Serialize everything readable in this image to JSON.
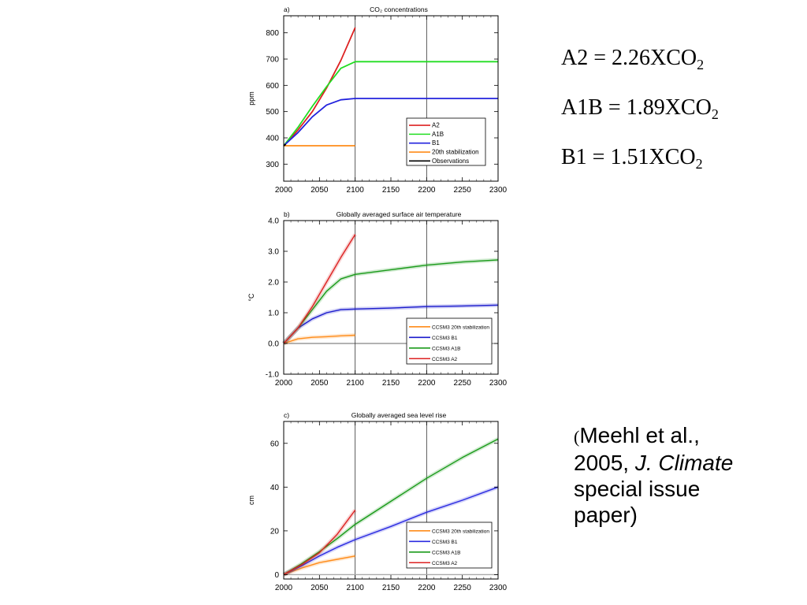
{
  "equations": [
    {
      "label": "A2 = 2.26XCO",
      "sub": "2"
    },
    {
      "label": "A1B = 1.89XCO",
      "sub": "2"
    },
    {
      "label": "B1 = 1.51XCO",
      "sub": "2"
    }
  ],
  "citation": {
    "open_paren": "(",
    "line1": "Meehl et al.,",
    "line2_prefix": "2005, ",
    "journal": "J. Climate",
    "line3": "special issue",
    "line4": "paper)"
  },
  "chart_data": [
    {
      "type": "line",
      "panel_label": "a)",
      "title": "CO₂ concentrations",
      "xlabel": "",
      "ylabel": "ppm",
      "xlim": [
        2000,
        2300
      ],
      "ylim": [
        235,
        865
      ],
      "xticks": [
        2000,
        2050,
        2100,
        2150,
        2200,
        2250,
        2300
      ],
      "yticks": [
        300,
        400,
        500,
        600,
        700,
        800
      ],
      "ytick_labels": [
        "300",
        "400",
        "500",
        "600",
        "700",
        "800"
      ],
      "vlines": [
        2100,
        2200
      ],
      "legend": [
        "A2",
        "A1B",
        "B1",
        "20th stabilization",
        "Observations"
      ],
      "series": [
        {
          "name": "A2",
          "color": "#dd2222",
          "x": [
            2000,
            2020,
            2040,
            2060,
            2080,
            2100
          ],
          "y": [
            370,
            430,
            500,
            590,
            695,
            820
          ]
        },
        {
          "name": "A1B",
          "color": "#22dd22",
          "x": [
            2000,
            2020,
            2040,
            2060,
            2080,
            2100,
            2300
          ],
          "y": [
            370,
            440,
            520,
            595,
            665,
            690,
            690
          ]
        },
        {
          "name": "B1",
          "color": "#2222dd",
          "x": [
            2000,
            2020,
            2040,
            2060,
            2080,
            2100,
            2300
          ],
          "y": [
            370,
            420,
            480,
            525,
            545,
            550,
            550
          ]
        },
        {
          "name": "20th stabilization",
          "color": "#ff8c1a",
          "x": [
            2000,
            2100
          ],
          "y": [
            370,
            370
          ]
        },
        {
          "name": "Observations",
          "color": "#000000",
          "x": [
            2000,
            2003
          ],
          "y": [
            370,
            375
          ]
        }
      ]
    },
    {
      "type": "line",
      "panel_label": "b)",
      "title": "Globally averaged surface air temperature",
      "xlabel": "",
      "ylabel": "°C",
      "xlim": [
        2000,
        2300
      ],
      "ylim": [
        -1.0,
        4.0
      ],
      "xticks": [
        2000,
        2050,
        2100,
        2150,
        2200,
        2250,
        2300
      ],
      "yticks": [
        -1.0,
        0.0,
        1.0,
        2.0,
        3.0,
        4.0
      ],
      "ytick_labels": [
        "-1.0",
        "0.0",
        "1.0",
        "2.0",
        "3.0",
        "4.0"
      ],
      "vlines": [
        2100,
        2200
      ],
      "hlines": [
        0.0
      ],
      "legend": [
        "CCSM3 20th stabilization",
        "CCSM3 B1",
        "CCSM3 A1B",
        "CCSM3 A2"
      ],
      "series": [
        {
          "name": "CCSM3 20th stabilization",
          "color": "#ff8c1a",
          "x": [
            2000,
            2020,
            2040,
            2060,
            2080,
            2100
          ],
          "y": [
            0.0,
            0.15,
            0.2,
            0.22,
            0.25,
            0.27
          ]
        },
        {
          "name": "CCSM3 B1",
          "color": "#1a1acc",
          "x": [
            2000,
            2020,
            2040,
            2060,
            2080,
            2100,
            2150,
            2200,
            2250,
            2300
          ],
          "y": [
            0.0,
            0.5,
            0.8,
            1.0,
            1.1,
            1.12,
            1.15,
            1.2,
            1.22,
            1.25
          ]
        },
        {
          "name": "CCSM3 A1B",
          "color": "#1a9a1a",
          "x": [
            2000,
            2020,
            2040,
            2060,
            2080,
            2100,
            2150,
            2200,
            2250,
            2300
          ],
          "y": [
            0.0,
            0.5,
            1.1,
            1.7,
            2.1,
            2.25,
            2.4,
            2.55,
            2.65,
            2.72
          ]
        },
        {
          "name": "CCSM3 A2",
          "color": "#dd2222",
          "x": [
            2000,
            2020,
            2040,
            2060,
            2080,
            2100
          ],
          "y": [
            0.0,
            0.5,
            1.2,
            2.0,
            2.8,
            3.55
          ]
        }
      ]
    },
    {
      "type": "line",
      "panel_label": "c)",
      "title": "Globally averaged sea level rise",
      "xlabel": "",
      "ylabel": "cm",
      "xlim": [
        2000,
        2300
      ],
      "ylim": [
        -2,
        70
      ],
      "xticks": [
        2000,
        2050,
        2100,
        2150,
        2200,
        2250,
        2300
      ],
      "yticks": [
        0,
        20,
        40,
        60
      ],
      "ytick_labels": [
        "0",
        "20",
        "40",
        "60"
      ],
      "vlines": [
        2100,
        2200
      ],
      "hlines": [
        0
      ],
      "legend": [
        "CCSM3 20th stabilization",
        "CCSM3 B1",
        "CCSM3 A1B",
        "CCSM3 A2"
      ],
      "series": [
        {
          "name": "CCSM3 20th stabilization",
          "color": "#ff8c1a",
          "x": [
            2000,
            2025,
            2050,
            2075,
            2100
          ],
          "y": [
            0,
            3,
            5.5,
            7,
            8.5
          ]
        },
        {
          "name": "CCSM3 B1",
          "color": "#2a2ae0",
          "x": [
            2000,
            2025,
            2050,
            2075,
            2100,
            2150,
            2200,
            2250,
            2300
          ],
          "y": [
            0,
            4,
            8.5,
            12.5,
            16,
            22,
            28.5,
            34,
            40
          ]
        },
        {
          "name": "CCSM3 A1B",
          "color": "#1a9a1a",
          "x": [
            2000,
            2025,
            2050,
            2075,
            2100,
            2150,
            2200,
            2250,
            2300
          ],
          "y": [
            0,
            5,
            10.5,
            16.5,
            23,
            33.5,
            44,
            53.5,
            62
          ]
        },
        {
          "name": "CCSM3 A2",
          "color": "#dd2222",
          "x": [
            2000,
            2025,
            2050,
            2075,
            2100
          ],
          "y": [
            0,
            4.5,
            10,
            18.5,
            29.5
          ]
        }
      ]
    }
  ]
}
